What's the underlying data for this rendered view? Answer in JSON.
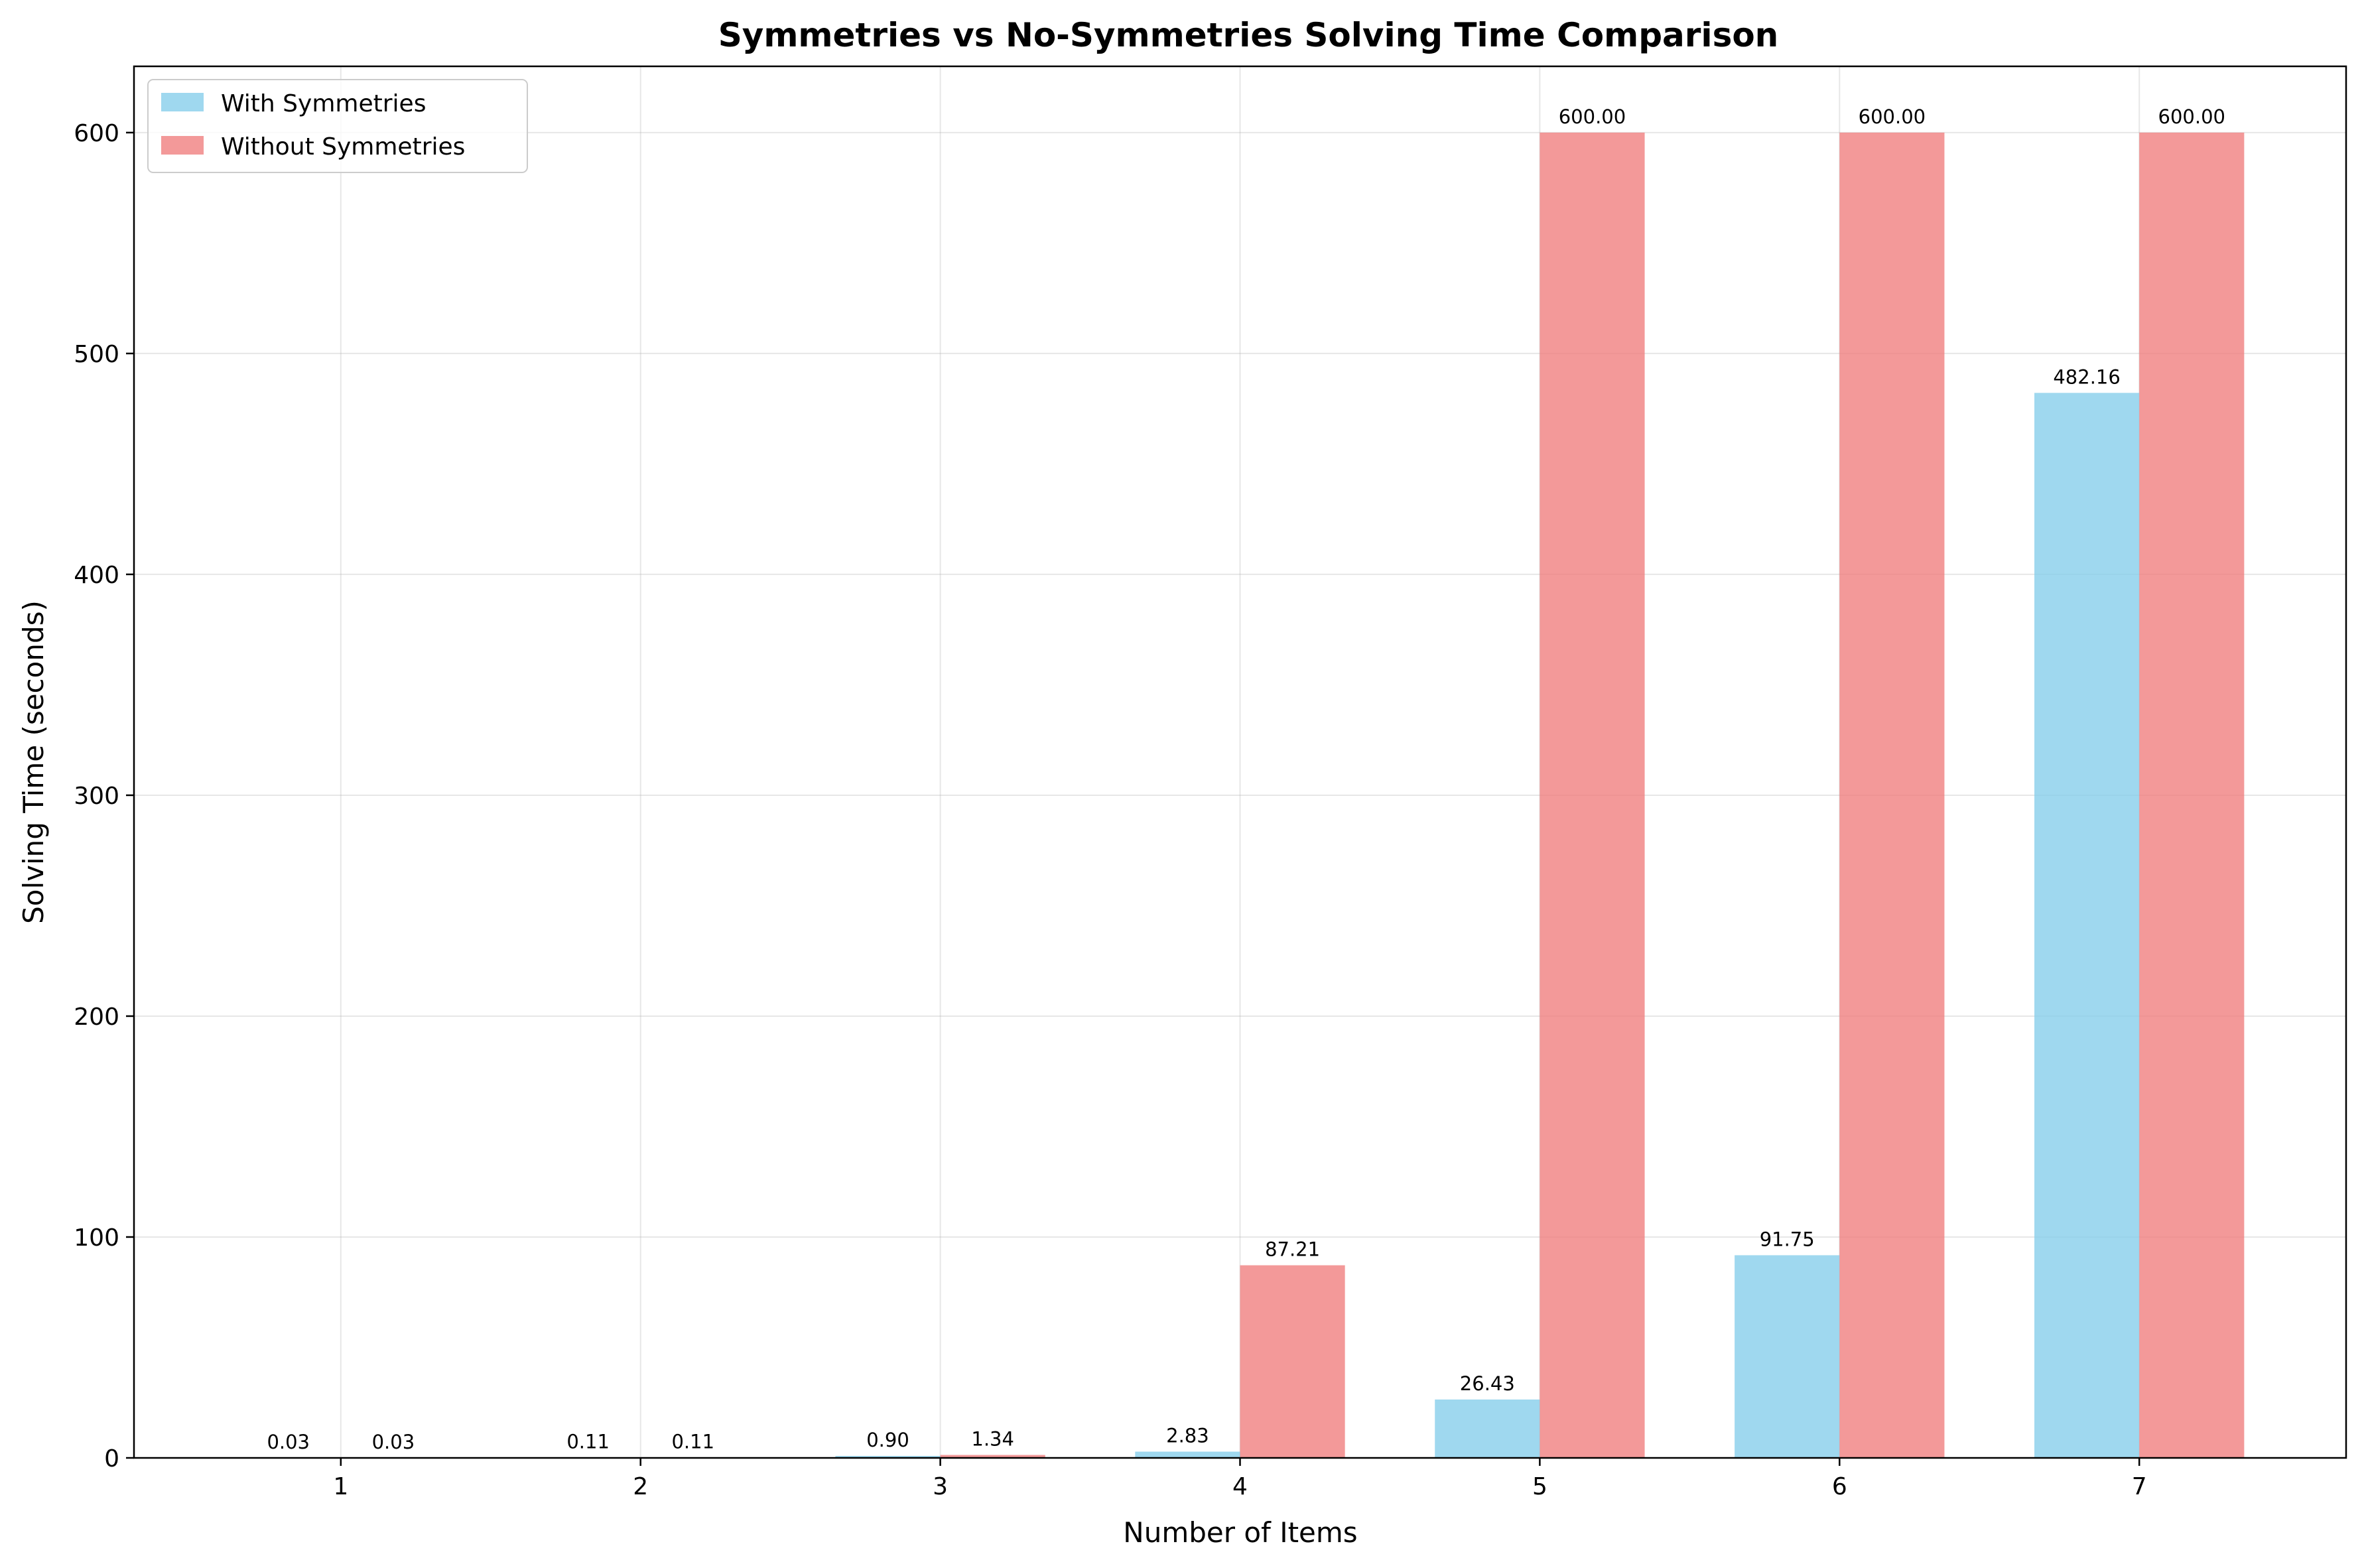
{
  "chart_data": {
    "type": "bar",
    "title": "Symmetries vs No-Symmetries Solving Time Comparison",
    "xlabel": "Number of Items",
    "ylabel": "Solving Time (seconds)",
    "categories": [
      "1",
      "2",
      "3",
      "4",
      "5",
      "6",
      "7"
    ],
    "series": [
      {
        "name": "With Symmetries",
        "color": "#87ceeb",
        "values": [
          0.03,
          0.11,
          0.9,
          2.83,
          26.43,
          91.75,
          482.16
        ],
        "labels": [
          "0.03",
          "0.11",
          "0.90",
          "2.83",
          "26.43",
          "91.75",
          "482.16"
        ]
      },
      {
        "name": "Without Symmetries",
        "color": "#f08080",
        "values": [
          0.03,
          0.11,
          1.34,
          87.21,
          600.0,
          600.0,
          600.0
        ],
        "labels": [
          "0.03",
          "0.11",
          "1.34",
          "87.21",
          "600.00",
          "600.00",
          "600.00"
        ]
      }
    ],
    "yticks": [
      0,
      100,
      200,
      300,
      400,
      500,
      600
    ],
    "ylim": [
      0,
      630
    ],
    "xlim": [
      0.31,
      7.69
    ],
    "grid": true,
    "legend": "upper-left"
  }
}
